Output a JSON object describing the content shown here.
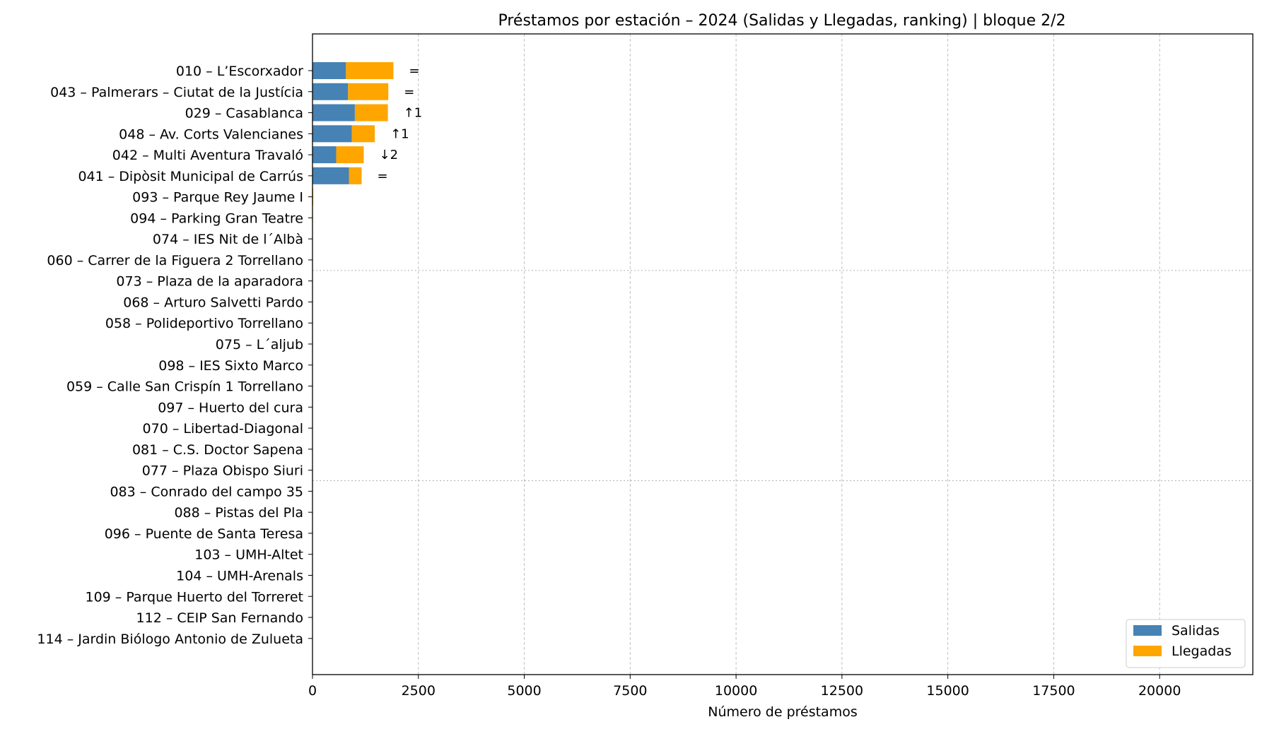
{
  "chart_data": {
    "type": "bar",
    "orientation": "horizontal",
    "stacked": true,
    "title": "Préstamos por estación – 2024 (Salidas y Llegadas, ranking)  |  bloque 2/2",
    "xlabel": "Número de préstamos",
    "ylabel": "",
    "xlim": [
      0,
      22200
    ],
    "xticks": [
      0,
      2500,
      5000,
      7500,
      10000,
      12500,
      15000,
      17500,
      20000
    ],
    "grid": true,
    "legend_position": "lower-right",
    "colors": {
      "Salidas": "#4682b4",
      "Llegadas": "#ffa500"
    },
    "categories": [
      "010 – L’Escorxador",
      "043 – Palmerars – Ciutat de la Justícia",
      "029 – Casablanca",
      "048 – Av. Corts Valencianes",
      "042 – Multi Aventura Travaló",
      "041 – Dipòsit Municipal de Carrús",
      "093 – Parque Rey Jaume I",
      "094 – Parking Gran Teatre",
      "074 – IES Nit de l´Albà",
      "060 – Carrer de la Figuera 2 Torrellano",
      "073 – Plaza de la aparadora",
      "068 – Arturo Salvetti Pardo",
      "058 – Polideportivo Torrellano",
      "075 – L´aljub",
      "098 – IES Sixto Marco",
      "059 – Calle San Crispín 1 Torrellano",
      "097 – Huerto del cura",
      "070 – Libertad-Diagonal",
      "081 – C.S. Doctor Sapena",
      "077 – Plaza Obispo Siuri",
      "083 – Conrado del campo 35",
      "088 – Pistas del Pla",
      "096 – Puente de Santa Teresa",
      "103 – UMH-Altet",
      "104 – UMH-Arenals",
      "109 – Parque Huerto del Torreret",
      "112 – CEIP San Fernando",
      "114 – Jardin Biólogo Antonio de Zulueta"
    ],
    "series": [
      {
        "name": "Salidas",
        "values": [
          790,
          840,
          1000,
          930,
          560,
          860,
          8,
          4,
          2,
          2,
          2,
          2,
          2,
          2,
          2,
          2,
          2,
          2,
          2,
          2,
          2,
          2,
          2,
          2,
          2,
          2,
          2,
          2
        ]
      },
      {
        "name": "Llegadas",
        "values": [
          1120,
          950,
          780,
          540,
          650,
          300,
          10,
          6,
          3,
          3,
          2,
          2,
          2,
          2,
          2,
          2,
          2,
          2,
          2,
          2,
          2,
          2,
          2,
          2,
          2,
          2,
          2,
          2
        ]
      }
    ],
    "rank_annotations": [
      "=",
      "=",
      "↑1",
      "↑1",
      "↓2",
      "="
    ],
    "group_separators_after": [
      9,
      19
    ]
  }
}
